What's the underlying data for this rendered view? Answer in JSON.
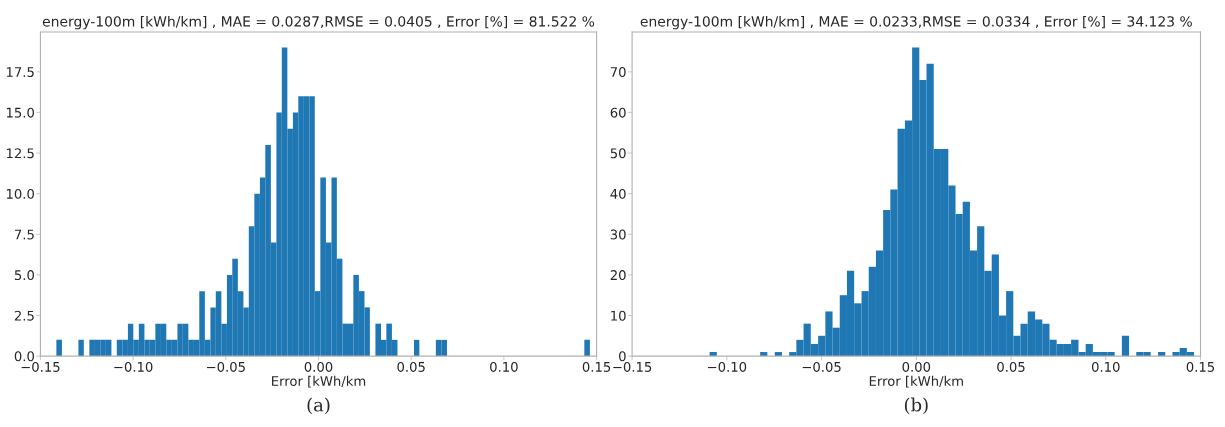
{
  "chart_data": [
    {
      "type": "histogram",
      "title": "energy-100m [kWh/km] , MAE = 0.0287,RMSE = 0.0405 , Error [%] = 81.522 %",
      "xlabel": "Error [kWh/km",
      "annotations": [
        "(a)"
      ],
      "color": "#1f77b4",
      "grid": false,
      "bins": [
        -0.1414,
        -0.1384,
        -0.1355,
        -0.1325,
        -0.1295,
        -0.1266,
        -0.1236,
        -0.1206,
        -0.1177,
        -0.1147,
        -0.1117,
        -0.1088,
        -0.1058,
        -0.1028,
        -0.0999,
        -0.0969,
        -0.0939,
        -0.091,
        -0.088,
        -0.085,
        -0.0821,
        -0.0791,
        -0.0761,
        -0.0732,
        -0.0702,
        -0.0672,
        -0.0643,
        -0.0613,
        -0.0583,
        -0.0554,
        -0.0524,
        -0.0494,
        -0.0465,
        -0.0435,
        -0.0405,
        -0.0376,
        -0.0346,
        -0.0316,
        -0.0287,
        -0.0257,
        -0.0227,
        -0.0198,
        -0.0168,
        -0.0138,
        -0.0109,
        -0.0079,
        -0.0049,
        -0.002,
        0.001,
        0.004,
        0.007,
        0.0099,
        0.0129,
        0.0159,
        0.0188,
        0.0218,
        0.0248,
        0.0277,
        0.0307,
        0.0337,
        0.0366,
        0.0396,
        0.0426,
        0.0455,
        0.0485,
        0.0515,
        0.0544,
        0.0574,
        0.0604,
        0.0633,
        0.0663,
        0.0693,
        0.0722,
        0.0752,
        0.0782,
        0.0811,
        0.0841,
        0.0871,
        0.09,
        0.093,
        0.096,
        0.0989,
        0.1019,
        0.1049,
        0.1078,
        0.1108,
        0.1138,
        0.1167,
        0.1197,
        0.1227,
        0.1256,
        0.1286,
        0.1316,
        0.1345,
        0.1375,
        0.1405,
        0.1434,
        0.1464
      ],
      "values": [
        1,
        0,
        0,
        0,
        1,
        0,
        1,
        1,
        1,
        1,
        0,
        1,
        1,
        2,
        1,
        2,
        1,
        1,
        2,
        2,
        1,
        1,
        2,
        2,
        1,
        1,
        4,
        1,
        3,
        4,
        2,
        5,
        6,
        4,
        3,
        8,
        10,
        11,
        13,
        7,
        15,
        19,
        14,
        15,
        16,
        16,
        16,
        4,
        11,
        7,
        11,
        6,
        2,
        2,
        5,
        4,
        3,
        0,
        2,
        1,
        2,
        1,
        0,
        0,
        0,
        1,
        0,
        0,
        0,
        1,
        1,
        0,
        0,
        0,
        0,
        0,
        0,
        0,
        0,
        0,
        0,
        0,
        0,
        0,
        0,
        0,
        0,
        0,
        0,
        0,
        0,
        0,
        0,
        0,
        0,
        0,
        1
      ],
      "xlim": [
        -0.15,
        0.15
      ],
      "xticks": [
        {
          "value": -0.15,
          "label": "−0.15"
        },
        {
          "value": -0.1,
          "label": "−0.10"
        },
        {
          "value": -0.05,
          "label": "−0.05"
        },
        {
          "value": 0,
          "label": "0.00"
        },
        {
          "value": 0.05,
          "label": "0.05"
        },
        {
          "value": 0.1,
          "label": "0.10"
        },
        {
          "value": 0.15,
          "label": "0.15"
        }
      ],
      "ylim": [
        0,
        19.95
      ],
      "yticks": [
        {
          "value": 0,
          "label": "0.0"
        },
        2.5,
        {
          "value": 5,
          "label": "5.0"
        },
        {
          "value": 7.5,
          "label": "7.5"
        },
        {
          "value": 10,
          "label": "10.0"
        },
        12.5,
        {
          "value": 15,
          "label": "15.0"
        },
        17.5
      ]
    },
    {
      "type": "histogram",
      "title": "energy-100m [kWh/km] , MAE = 0.0233,RMSE = 0.0334 , Error [%] = 34.123 %",
      "xlabel": "Error [kWh/km",
      "annotations": [
        "(b)"
      ],
      "color": "#1f77b4",
      "grid": false,
      "bins": [
        -0.1091,
        -0.1053,
        -0.1015,
        -0.0976,
        -0.0938,
        -0.09,
        -0.0862,
        -0.0824,
        -0.0786,
        -0.0747,
        -0.0709,
        -0.0671,
        -0.0633,
        -0.0595,
        -0.0557,
        -0.0518,
        -0.048,
        -0.0442,
        -0.0404,
        -0.0366,
        -0.0328,
        -0.0289,
        -0.0251,
        -0.0213,
        -0.0175,
        -0.0137,
        -0.0099,
        -0.006,
        -0.0022,
        0.0016,
        0.0054,
        0.0092,
        0.013,
        0.0169,
        0.0207,
        0.0245,
        0.0283,
        0.0321,
        0.0359,
        0.0398,
        0.0436,
        0.0474,
        0.0512,
        0.055,
        0.0588,
        0.0627,
        0.0665,
        0.0703,
        0.0741,
        0.0779,
        0.0817,
        0.0856,
        0.0894,
        0.0932,
        0.097,
        0.1008,
        0.1047,
        0.1085,
        0.1123,
        0.1161,
        0.1199,
        0.1237,
        0.1276,
        0.1314,
        0.1352,
        0.139,
        0.1428,
        0.1466
      ],
      "values": [
        1,
        0,
        0,
        0,
        0,
        0,
        0,
        1,
        0,
        1,
        0,
        1,
        4,
        8,
        3,
        5,
        11,
        7,
        15,
        21,
        13,
        16,
        22,
        26,
        36,
        41,
        56,
        58,
        76,
        68,
        72,
        51,
        51,
        42,
        35,
        38,
        26,
        32,
        21,
        25,
        10,
        16,
        5,
        8,
        11,
        9,
        8,
        4,
        3,
        3,
        4,
        1,
        3,
        1,
        1,
        1,
        0,
        5,
        0,
        1,
        1,
        0,
        1,
        0,
        1,
        2,
        1
      ],
      "xlim": [
        -0.15,
        0.15
      ],
      "xticks": [
        {
          "value": -0.15,
          "label": "−0.15"
        },
        {
          "value": -0.1,
          "label": "−0.10"
        },
        {
          "value": -0.05,
          "label": "−0.05"
        },
        {
          "value": 0,
          "label": "0.00"
        },
        {
          "value": 0.05,
          "label": "0.05"
        },
        {
          "value": 0.1,
          "label": "0.10"
        },
        {
          "value": 0.15,
          "label": "0.15"
        }
      ],
      "ylim": [
        0,
        79.8
      ],
      "yticks": [
        0,
        10,
        20,
        30,
        40,
        50,
        60,
        70
      ]
    }
  ]
}
